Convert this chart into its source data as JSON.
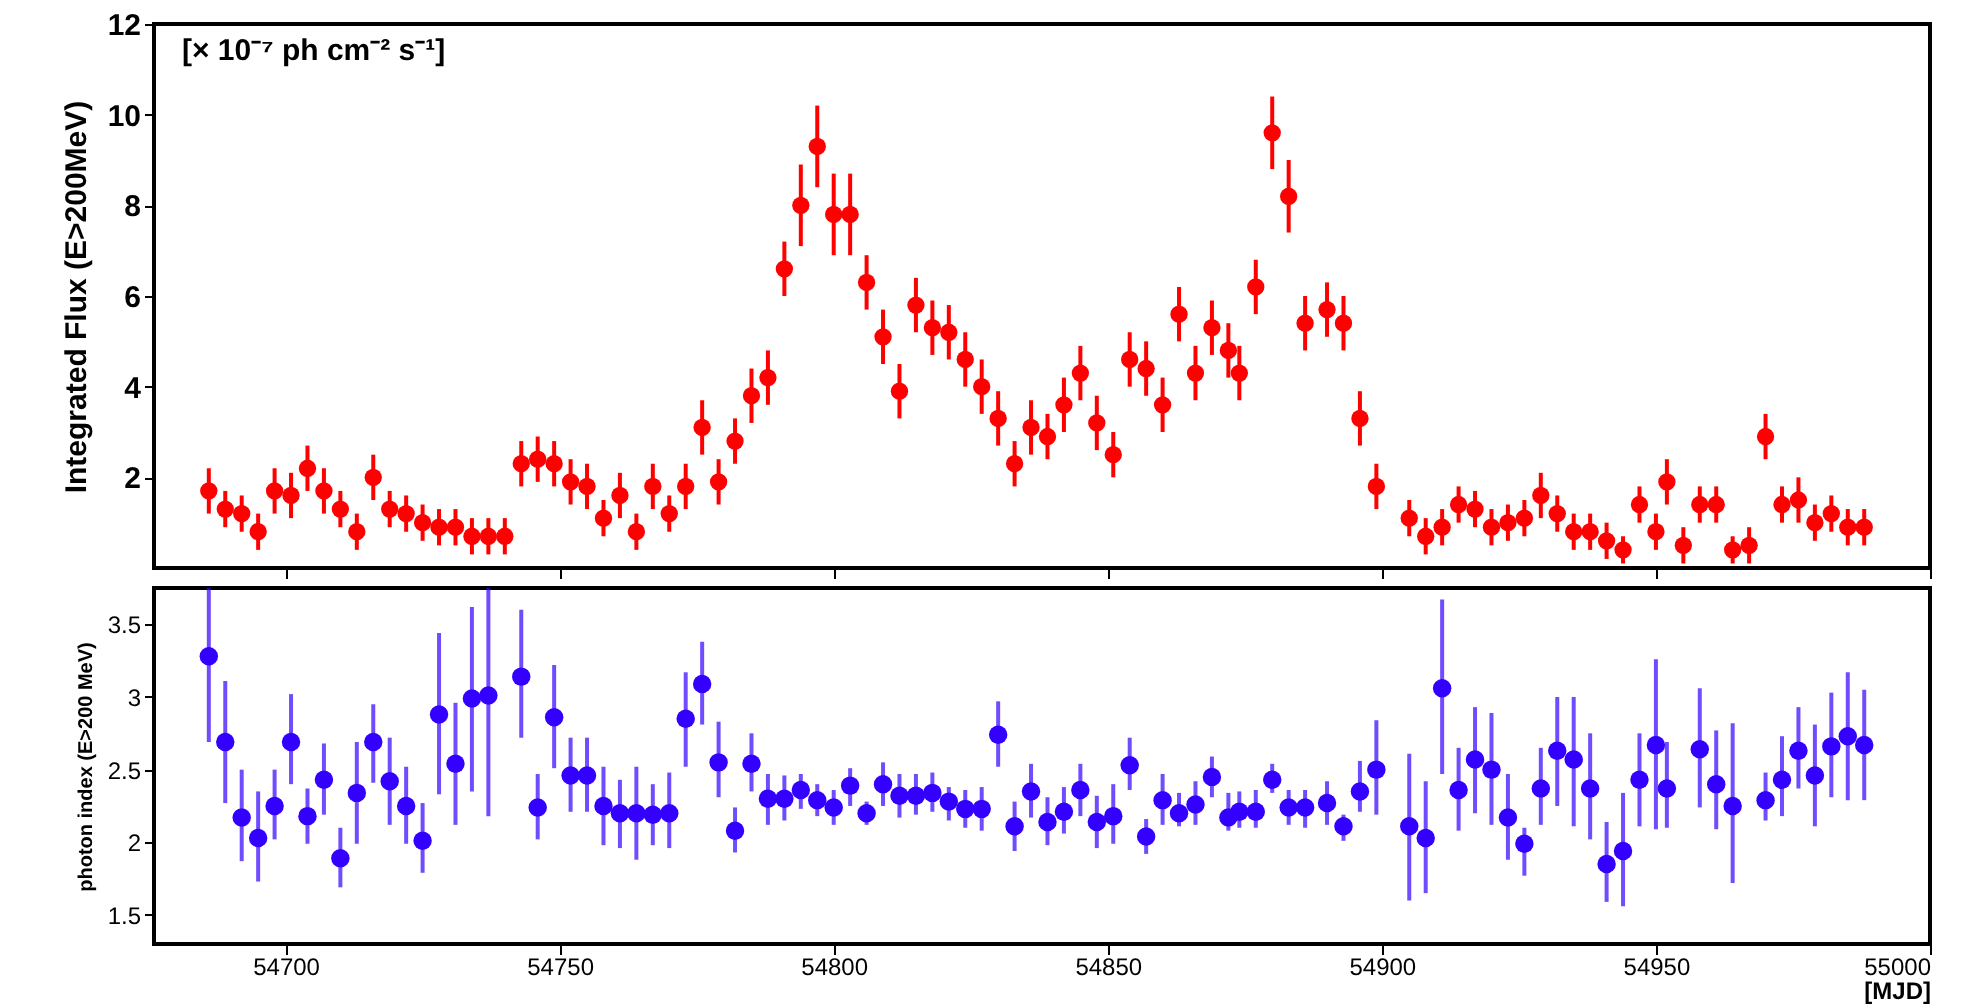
{
  "chart_data": [
    {
      "type": "scatter",
      "ylabel": "Integrated Flux (E>200MeV)",
      "annotations": [
        "[× 10⁻⁷ ph cm⁻² s⁻¹]"
      ],
      "marker": "circle",
      "grid": false,
      "tick_labels": "y",
      "xlim": [
        54676,
        55000
      ],
      "xticks": [
        54700,
        54750,
        54800,
        54850,
        54900,
        54950,
        55000
      ],
      "ylim": [
        0,
        12
      ],
      "yticks": [
        2,
        4,
        6,
        8,
        10,
        12
      ],
      "x": [
        54686,
        54689,
        54692,
        54695,
        54698,
        54701,
        54704,
        54707,
        54710,
        54713,
        54716,
        54719,
        54722,
        54725,
        54728,
        54731,
        54734,
        54737,
        54740,
        54743,
        54746,
        54749,
        54752,
        54755,
        54758,
        54761,
        54764,
        54767,
        54770,
        54773,
        54776,
        54779,
        54782,
        54785,
        54788,
        54791,
        54794,
        54797,
        54800,
        54803,
        54806,
        54809,
        54812,
        54815,
        54818,
        54821,
        54824,
        54827,
        54830,
        54833,
        54836,
        54839,
        54842,
        54845,
        54848,
        54851,
        54854,
        54857,
        54860,
        54863,
        54866,
        54869,
        54872,
        54874,
        54877,
        54880,
        54883,
        54886,
        54890,
        54893,
        54896,
        54899,
        54905,
        54908,
        54911,
        54914,
        54917,
        54920,
        54923,
        54926,
        54929,
        54932,
        54935,
        54938,
        54941,
        54944,
        54947,
        54950,
        54952,
        54955,
        54958,
        54961,
        54964,
        54967,
        54970,
        54973,
        54976,
        54979,
        54982,
        54985,
        54988
      ],
      "series": [
        {
          "color": "#ff0000",
          "values": [
            1.7,
            1.3,
            1.2,
            0.8,
            1.7,
            1.6,
            2.2,
            1.7,
            1.3,
            0.8,
            2.0,
            1.3,
            1.2,
            1.0,
            0.9,
            0.9,
            0.7,
            0.7,
            0.7,
            2.3,
            2.4,
            2.3,
            1.9,
            1.8,
            1.1,
            1.6,
            0.8,
            1.8,
            1.2,
            1.8,
            3.1,
            1.9,
            2.8,
            3.8,
            4.2,
            6.6,
            8.0,
            9.3,
            7.8,
            7.8,
            6.3,
            5.1,
            3.9,
            5.8,
            5.3,
            5.2,
            4.6,
            4.0,
            3.3,
            2.3,
            3.1,
            2.9,
            3.6,
            4.3,
            3.2,
            2.5,
            4.6,
            4.4,
            3.6,
            5.6,
            4.3,
            5.3,
            4.8,
            4.3,
            6.2,
            9.6,
            8.2,
            5.4,
            5.7,
            5.4,
            3.3,
            1.8,
            1.1,
            0.7,
            0.9,
            1.4,
            1.3,
            0.9,
            1.0,
            1.1,
            1.6,
            1.2,
            0.8,
            0.8,
            0.6,
            0.4,
            1.4,
            0.8,
            1.9,
            0.5,
            1.4,
            1.4,
            0.4,
            0.5,
            2.9,
            1.4,
            1.5,
            1.0,
            1.2,
            0.9,
            0.9
          ],
          "errors": [
            0.5,
            0.4,
            0.4,
            0.4,
            0.5,
            0.5,
            0.5,
            0.5,
            0.4,
            0.4,
            0.5,
            0.4,
            0.4,
            0.4,
            0.4,
            0.4,
            0.4,
            0.4,
            0.4,
            0.5,
            0.5,
            0.5,
            0.5,
            0.5,
            0.4,
            0.5,
            0.4,
            0.5,
            0.4,
            0.5,
            0.6,
            0.5,
            0.5,
            0.6,
            0.6,
            0.6,
            0.9,
            0.9,
            0.9,
            0.9,
            0.6,
            0.6,
            0.6,
            0.6,
            0.6,
            0.6,
            0.6,
            0.6,
            0.6,
            0.5,
            0.6,
            0.5,
            0.6,
            0.6,
            0.6,
            0.5,
            0.6,
            0.6,
            0.6,
            0.6,
            0.6,
            0.6,
            0.6,
            0.6,
            0.6,
            0.8,
            0.8,
            0.6,
            0.6,
            0.6,
            0.6,
            0.5,
            0.4,
            0.4,
            0.4,
            0.4,
            0.4,
            0.4,
            0.4,
            0.4,
            0.5,
            0.4,
            0.4,
            0.4,
            0.4,
            0.3,
            0.4,
            0.4,
            0.5,
            0.4,
            0.4,
            0.4,
            0.3,
            0.4,
            0.5,
            0.4,
            0.5,
            0.4,
            0.4,
            0.4,
            0.4
          ]
        }
      ]
    },
    {
      "type": "scatter",
      "xlabel": "[MJD]",
      "ylabel": "photon index (E>200 MeV)",
      "marker": "circle",
      "grid": false,
      "xlim": [
        54676,
        55000
      ],
      "xticks": [
        54700,
        54750,
        54800,
        54850,
        54900,
        54950,
        55000
      ],
      "ylim": [
        1.3,
        3.75
      ],
      "yticks": [
        1.5,
        2,
        2.5,
        3,
        3.5
      ],
      "x": [
        54686,
        54689,
        54692,
        54695,
        54698,
        54701,
        54704,
        54707,
        54710,
        54713,
        54716,
        54719,
        54722,
        54725,
        54728,
        54731,
        54734,
        54737,
        54743,
        54746,
        54749,
        54752,
        54755,
        54758,
        54761,
        54764,
        54767,
        54770,
        54773,
        54776,
        54779,
        54782,
        54785,
        54788,
        54791,
        54794,
        54797,
        54800,
        54803,
        54806,
        54809,
        54812,
        54815,
        54818,
        54821,
        54824,
        54827,
        54830,
        54833,
        54836,
        54839,
        54842,
        54845,
        54848,
        54851,
        54854,
        54857,
        54860,
        54863,
        54866,
        54869,
        54872,
        54874,
        54877,
        54880,
        54883,
        54886,
        54890,
        54893,
        54896,
        54899,
        54905,
        54908,
        54911,
        54914,
        54917,
        54920,
        54923,
        54926,
        54929,
        54932,
        54935,
        54938,
        54941,
        54944,
        54947,
        54950,
        54952,
        54958,
        54961,
        54964,
        54970,
        54973,
        54976,
        54979,
        54982,
        54985,
        54988
      ],
      "series": [
        {
          "color": "#3300ff",
          "values": [
            3.28,
            2.69,
            2.17,
            2.03,
            2.25,
            2.69,
            2.18,
            2.43,
            1.89,
            2.34,
            2.69,
            2.42,
            2.25,
            2.01,
            2.88,
            2.54,
            2.99,
            3.01,
            3.14,
            2.24,
            2.86,
            2.46,
            2.46,
            2.25,
            2.2,
            2.2,
            2.19,
            2.2,
            2.85,
            3.09,
            2.55,
            2.08,
            2.54,
            2.3,
            2.3,
            2.36,
            2.29,
            2.24,
            2.39,
            2.2,
            2.4,
            2.32,
            2.32,
            2.34,
            2.28,
            2.23,
            2.23,
            2.74,
            2.11,
            2.35,
            2.14,
            2.21,
            2.36,
            2.14,
            2.18,
            2.53,
            2.04,
            2.29,
            2.2,
            2.26,
            2.45,
            2.17,
            2.21,
            2.21,
            2.43,
            2.24,
            2.24,
            2.27,
            2.11,
            2.35,
            2.5,
            2.11,
            2.03,
            3.06,
            2.36,
            2.57,
            2.5,
            2.17,
            1.99,
            2.37,
            2.63,
            2.57,
            2.37,
            1.85,
            1.94,
            2.43,
            2.67,
            2.37,
            2.64,
            2.4,
            2.25,
            2.29,
            2.43,
            2.63,
            2.46,
            2.66,
            2.73,
            2.67
          ],
          "errors": [
            [
              2.69,
              3.75
            ],
            [
              2.27,
              3.11
            ],
            [
              1.87,
              2.5
            ],
            [
              1.73,
              2.35
            ],
            [
              2.02,
              2.5
            ],
            [
              2.4,
              3.02
            ],
            [
              1.99,
              2.37
            ],
            [
              2.19,
              2.68
            ],
            [
              1.69,
              2.1
            ],
            [
              1.99,
              2.69
            ],
            [
              2.41,
              2.95
            ],
            [
              2.12,
              2.72
            ],
            [
              1.99,
              2.52
            ],
            [
              1.79,
              2.27
            ],
            [
              2.33,
              3.44
            ],
            [
              2.12,
              2.96
            ],
            [
              2.35,
              3.62
            ],
            [
              2.18,
              3.75
            ],
            [
              2.72,
              3.6
            ],
            [
              2.02,
              2.47
            ],
            [
              2.51,
              3.22
            ],
            [
              2.21,
              2.72
            ],
            [
              2.21,
              2.72
            ],
            [
              1.98,
              2.52
            ],
            [
              1.96,
              2.43
            ],
            [
              1.88,
              2.52
            ],
            [
              1.98,
              2.4
            ],
            [
              1.96,
              2.48
            ],
            [
              2.52,
              3.17
            ],
            [
              2.81,
              3.38
            ],
            [
              2.31,
              2.83
            ],
            [
              1.93,
              2.24
            ],
            [
              2.35,
              2.75
            ],
            [
              2.12,
              2.47
            ],
            [
              2.15,
              2.46
            ],
            [
              2.23,
              2.47
            ],
            [
              2.18,
              2.4
            ],
            [
              2.12,
              2.36
            ],
            [
              2.25,
              2.51
            ],
            [
              2.12,
              2.28
            ],
            [
              2.25,
              2.55
            ],
            [
              2.17,
              2.47
            ],
            [
              2.19,
              2.47
            ],
            [
              2.21,
              2.48
            ],
            [
              2.15,
              2.38
            ],
            [
              2.1,
              2.36
            ],
            [
              2.08,
              2.38
            ],
            [
              2.52,
              2.97
            ],
            [
              1.94,
              2.28
            ],
            [
              2.17,
              2.54
            ],
            [
              1.98,
              2.31
            ],
            [
              2.06,
              2.38
            ],
            [
              2.18,
              2.54
            ],
            [
              1.96,
              2.32
            ],
            [
              1.99,
              2.4
            ],
            [
              2.36,
              2.72
            ],
            [
              1.92,
              2.16
            ],
            [
              2.12,
              2.47
            ],
            [
              2.11,
              2.34
            ],
            [
              2.12,
              2.42
            ],
            [
              2.31,
              2.59
            ],
            [
              2.08,
              2.34
            ],
            [
              2.1,
              2.35
            ],
            [
              2.1,
              2.36
            ],
            [
              2.34,
              2.54
            ],
            [
              2.12,
              2.36
            ],
            [
              2.1,
              2.36
            ],
            [
              2.12,
              2.42
            ],
            [
              2.01,
              2.19
            ],
            [
              2.21,
              2.56
            ],
            [
              2.19,
              2.84
            ],
            [
              1.6,
              2.61
            ],
            [
              1.65,
              2.42
            ],
            [
              2.47,
              3.67
            ],
            [
              2.08,
              2.65
            ],
            [
              2.2,
              2.93
            ],
            [
              2.12,
              2.89
            ],
            [
              1.88,
              2.47
            ],
            [
              1.77,
              2.1
            ],
            [
              2.12,
              2.65
            ],
            [
              2.25,
              3.0
            ],
            [
              2.11,
              3.0
            ],
            [
              2.02,
              2.75
            ],
            [
              1.59,
              2.14
            ],
            [
              1.56,
              2.34
            ],
            [
              2.11,
              2.75
            ],
            [
              2.09,
              3.26
            ],
            [
              2.1,
              2.69
            ],
            [
              2.24,
              3.06
            ],
            [
              2.09,
              2.77
            ],
            [
              1.72,
              2.82
            ],
            [
              2.15,
              2.48
            ],
            [
              2.18,
              2.73
            ],
            [
              2.37,
              2.93
            ],
            [
              2.11,
              2.81
            ],
            [
              2.31,
              3.03
            ],
            [
              2.29,
              3.17
            ],
            [
              2.29,
              3.05
            ]
          ]
        }
      ]
    }
  ]
}
